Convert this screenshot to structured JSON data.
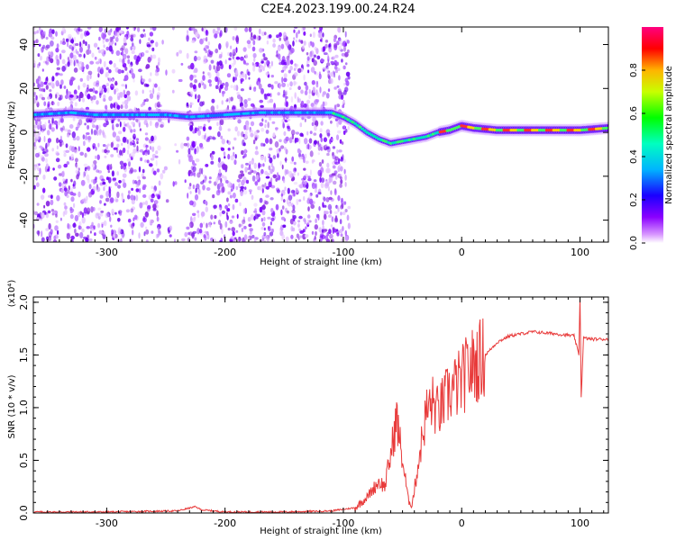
{
  "title": "C2E4.2023.199.00.24.R24",
  "spectrogram": {
    "type": "heatmap",
    "xlabel": "Height of straight line (km)",
    "ylabel": "Frequency (Hz)",
    "xlim": [
      -362,
      124
    ],
    "ylim": [
      -50,
      48
    ],
    "xticks": [
      -300,
      -200,
      -100,
      0,
      100
    ],
    "yticks": [
      -40,
      -20,
      0,
      20,
      40
    ],
    "xtick_labels": [
      "-300",
      "-200",
      "-100",
      "0",
      "100"
    ],
    "ytick_labels": [
      "-40",
      "-20",
      "0",
      "20",
      "40"
    ],
    "ridge": {
      "x": [
        -362,
        -330,
        -310,
        -280,
        -250,
        -230,
        -200,
        -170,
        -140,
        -110,
        -100,
        -90,
        -80,
        -70,
        -60,
        -50,
        -40,
        -30,
        -20,
        -10,
        -5,
        0,
        10,
        30,
        60,
        100,
        124
      ],
      "y": [
        8,
        9,
        8,
        8,
        8,
        7,
        8,
        9,
        9,
        9,
        7,
        4,
        0,
        -3,
        -5,
        -4,
        -3,
        -2,
        0,
        1,
        2,
        3,
        2,
        1,
        1,
        1,
        2
      ]
    },
    "colorbar": {
      "label": "Normalized spectral amplitude",
      "range": [
        0,
        1
      ],
      "ticks": [
        0.0,
        0.2,
        0.4,
        0.6,
        0.8
      ],
      "tick_labels": [
        "0.0",
        "0.2",
        "0.4",
        "0.6",
        "0.8"
      ]
    }
  },
  "snr": {
    "type": "line",
    "xlabel": "Height of straight line (km)",
    "ylabel": "SNR (10 * v/v)",
    "scale_label": "(x10⁴)",
    "xlim": [
      -362,
      124
    ],
    "ylim": [
      0,
      2.05
    ],
    "xticks": [
      -300,
      -200,
      -100,
      0,
      100
    ],
    "yticks": [
      0.0,
      0.5,
      1.0,
      1.5,
      2.0
    ],
    "xtick_labels": [
      "-300",
      "-200",
      "-100",
      "0",
      "100"
    ],
    "ytick_labels": [
      "0.0",
      "0.5",
      "1.0",
      "1.5",
      "2.0"
    ],
    "series": [
      {
        "color": "#e83a3a",
        "x": [
          -362,
          -300,
          -240,
          -225,
          -220,
          -200,
          -150,
          -110,
          -90,
          -80,
          -70,
          -65,
          -60,
          -55,
          -50,
          -45,
          -42,
          -40,
          -35,
          -30,
          -25,
          -20,
          -15,
          -10,
          -5,
          0,
          5,
          10,
          20,
          30,
          40,
          60,
          80,
          95,
          99,
          100,
          101,
          103,
          110,
          124
        ],
        "y": [
          0.01,
          0.01,
          0.02,
          0.06,
          0.03,
          0.01,
          0.01,
          0.02,
          0.05,
          0.15,
          0.3,
          0.25,
          0.55,
          0.9,
          0.5,
          0.12,
          0.08,
          0.22,
          0.6,
          0.95,
          1.05,
          0.95,
          1.05,
          1.15,
          1.2,
          1.25,
          1.35,
          1.4,
          1.5,
          1.62,
          1.68,
          1.72,
          1.7,
          1.68,
          1.5,
          2.05,
          1.1,
          1.66,
          1.65,
          1.65
        ]
      }
    ]
  },
  "colors": {
    "colormap": [
      "#ff00ff",
      "#8a00ff",
      "#0000ff",
      "#00c8ff",
      "#00ff80",
      "#80ff00",
      "#ffff00",
      "#ff8000",
      "#ff0000",
      "#ff0080"
    ]
  }
}
